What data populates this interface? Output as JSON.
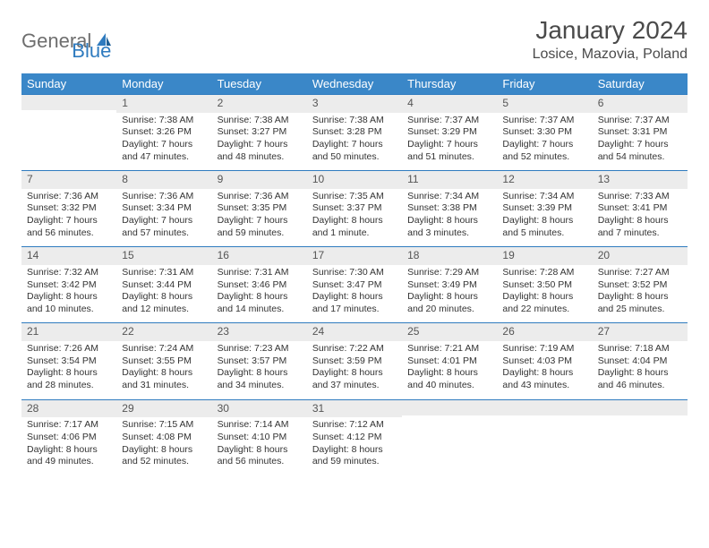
{
  "logo": {
    "word1": "General",
    "word2": "Blue"
  },
  "title": "January 2024",
  "location": "Losice, Mazovia, Poland",
  "colors": {
    "header_bg": "#3a87c8",
    "header_text": "#ffffff",
    "daynum_bg": "#ececec",
    "row_border": "#2f7bbf",
    "logo_gray": "#6e6e6e",
    "logo_blue": "#2f7bbf",
    "text": "#333333"
  },
  "day_headers": [
    "Sunday",
    "Monday",
    "Tuesday",
    "Wednesday",
    "Thursday",
    "Friday",
    "Saturday"
  ],
  "weeks": [
    [
      {
        "num": "",
        "sunrise": "",
        "sunset": "",
        "daylight": ""
      },
      {
        "num": "1",
        "sunrise": "Sunrise: 7:38 AM",
        "sunset": "Sunset: 3:26 PM",
        "daylight": "Daylight: 7 hours and 47 minutes."
      },
      {
        "num": "2",
        "sunrise": "Sunrise: 7:38 AM",
        "sunset": "Sunset: 3:27 PM",
        "daylight": "Daylight: 7 hours and 48 minutes."
      },
      {
        "num": "3",
        "sunrise": "Sunrise: 7:38 AM",
        "sunset": "Sunset: 3:28 PM",
        "daylight": "Daylight: 7 hours and 50 minutes."
      },
      {
        "num": "4",
        "sunrise": "Sunrise: 7:37 AM",
        "sunset": "Sunset: 3:29 PM",
        "daylight": "Daylight: 7 hours and 51 minutes."
      },
      {
        "num": "5",
        "sunrise": "Sunrise: 7:37 AM",
        "sunset": "Sunset: 3:30 PM",
        "daylight": "Daylight: 7 hours and 52 minutes."
      },
      {
        "num": "6",
        "sunrise": "Sunrise: 7:37 AM",
        "sunset": "Sunset: 3:31 PM",
        "daylight": "Daylight: 7 hours and 54 minutes."
      }
    ],
    [
      {
        "num": "7",
        "sunrise": "Sunrise: 7:36 AM",
        "sunset": "Sunset: 3:32 PM",
        "daylight": "Daylight: 7 hours and 56 minutes."
      },
      {
        "num": "8",
        "sunrise": "Sunrise: 7:36 AM",
        "sunset": "Sunset: 3:34 PM",
        "daylight": "Daylight: 7 hours and 57 minutes."
      },
      {
        "num": "9",
        "sunrise": "Sunrise: 7:36 AM",
        "sunset": "Sunset: 3:35 PM",
        "daylight": "Daylight: 7 hours and 59 minutes."
      },
      {
        "num": "10",
        "sunrise": "Sunrise: 7:35 AM",
        "sunset": "Sunset: 3:37 PM",
        "daylight": "Daylight: 8 hours and 1 minute."
      },
      {
        "num": "11",
        "sunrise": "Sunrise: 7:34 AM",
        "sunset": "Sunset: 3:38 PM",
        "daylight": "Daylight: 8 hours and 3 minutes."
      },
      {
        "num": "12",
        "sunrise": "Sunrise: 7:34 AM",
        "sunset": "Sunset: 3:39 PM",
        "daylight": "Daylight: 8 hours and 5 minutes."
      },
      {
        "num": "13",
        "sunrise": "Sunrise: 7:33 AM",
        "sunset": "Sunset: 3:41 PM",
        "daylight": "Daylight: 8 hours and 7 minutes."
      }
    ],
    [
      {
        "num": "14",
        "sunrise": "Sunrise: 7:32 AM",
        "sunset": "Sunset: 3:42 PM",
        "daylight": "Daylight: 8 hours and 10 minutes."
      },
      {
        "num": "15",
        "sunrise": "Sunrise: 7:31 AM",
        "sunset": "Sunset: 3:44 PM",
        "daylight": "Daylight: 8 hours and 12 minutes."
      },
      {
        "num": "16",
        "sunrise": "Sunrise: 7:31 AM",
        "sunset": "Sunset: 3:46 PM",
        "daylight": "Daylight: 8 hours and 14 minutes."
      },
      {
        "num": "17",
        "sunrise": "Sunrise: 7:30 AM",
        "sunset": "Sunset: 3:47 PM",
        "daylight": "Daylight: 8 hours and 17 minutes."
      },
      {
        "num": "18",
        "sunrise": "Sunrise: 7:29 AM",
        "sunset": "Sunset: 3:49 PM",
        "daylight": "Daylight: 8 hours and 20 minutes."
      },
      {
        "num": "19",
        "sunrise": "Sunrise: 7:28 AM",
        "sunset": "Sunset: 3:50 PM",
        "daylight": "Daylight: 8 hours and 22 minutes."
      },
      {
        "num": "20",
        "sunrise": "Sunrise: 7:27 AM",
        "sunset": "Sunset: 3:52 PM",
        "daylight": "Daylight: 8 hours and 25 minutes."
      }
    ],
    [
      {
        "num": "21",
        "sunrise": "Sunrise: 7:26 AM",
        "sunset": "Sunset: 3:54 PM",
        "daylight": "Daylight: 8 hours and 28 minutes."
      },
      {
        "num": "22",
        "sunrise": "Sunrise: 7:24 AM",
        "sunset": "Sunset: 3:55 PM",
        "daylight": "Daylight: 8 hours and 31 minutes."
      },
      {
        "num": "23",
        "sunrise": "Sunrise: 7:23 AM",
        "sunset": "Sunset: 3:57 PM",
        "daylight": "Daylight: 8 hours and 34 minutes."
      },
      {
        "num": "24",
        "sunrise": "Sunrise: 7:22 AM",
        "sunset": "Sunset: 3:59 PM",
        "daylight": "Daylight: 8 hours and 37 minutes."
      },
      {
        "num": "25",
        "sunrise": "Sunrise: 7:21 AM",
        "sunset": "Sunset: 4:01 PM",
        "daylight": "Daylight: 8 hours and 40 minutes."
      },
      {
        "num": "26",
        "sunrise": "Sunrise: 7:19 AM",
        "sunset": "Sunset: 4:03 PM",
        "daylight": "Daylight: 8 hours and 43 minutes."
      },
      {
        "num": "27",
        "sunrise": "Sunrise: 7:18 AM",
        "sunset": "Sunset: 4:04 PM",
        "daylight": "Daylight: 8 hours and 46 minutes."
      }
    ],
    [
      {
        "num": "28",
        "sunrise": "Sunrise: 7:17 AM",
        "sunset": "Sunset: 4:06 PM",
        "daylight": "Daylight: 8 hours and 49 minutes."
      },
      {
        "num": "29",
        "sunrise": "Sunrise: 7:15 AM",
        "sunset": "Sunset: 4:08 PM",
        "daylight": "Daylight: 8 hours and 52 minutes."
      },
      {
        "num": "30",
        "sunrise": "Sunrise: 7:14 AM",
        "sunset": "Sunset: 4:10 PM",
        "daylight": "Daylight: 8 hours and 56 minutes."
      },
      {
        "num": "31",
        "sunrise": "Sunrise: 7:12 AM",
        "sunset": "Sunset: 4:12 PM",
        "daylight": "Daylight: 8 hours and 59 minutes."
      },
      {
        "num": "",
        "sunrise": "",
        "sunset": "",
        "daylight": ""
      },
      {
        "num": "",
        "sunrise": "",
        "sunset": "",
        "daylight": ""
      },
      {
        "num": "",
        "sunrise": "",
        "sunset": "",
        "daylight": ""
      }
    ]
  ]
}
